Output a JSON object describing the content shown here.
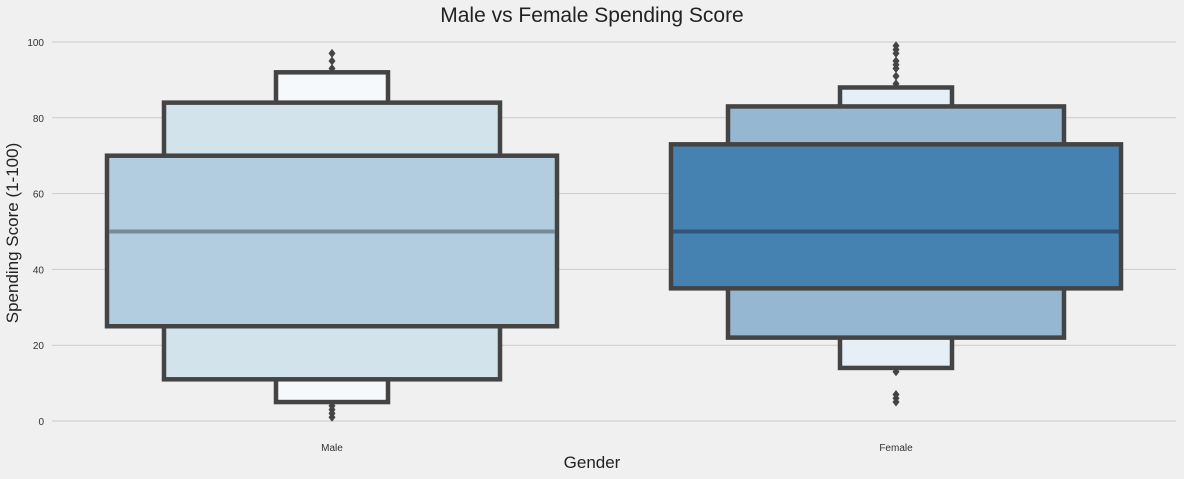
{
  "chart_data": {
    "type": "boxen",
    "title": "Male vs Female Spending Score",
    "xlabel": "Gender",
    "ylabel": "Spending Score (1-100)",
    "ylim": [
      0,
      100
    ],
    "yticks": [
      0,
      20,
      40,
      60,
      80,
      100
    ],
    "grid": true,
    "categories": [
      "Male",
      "Female"
    ],
    "series": [
      {
        "category": "Male",
        "median": 50,
        "boxes": [
          {
            "low": 25,
            "high": 70,
            "color": "#b3cde0"
          },
          {
            "low": 11,
            "high": 84,
            "color": "#d3e3ec"
          },
          {
            "low": 5,
            "high": 92,
            "color": "#f5f9fc"
          }
        ],
        "outliers": [
          1,
          2,
          3,
          4,
          93,
          95,
          97
        ],
        "median_color": "#768a97"
      },
      {
        "category": "Female",
        "median": 50,
        "boxes": [
          {
            "low": 35,
            "high": 73,
            "color": "#4682b1"
          },
          {
            "low": 22,
            "high": 83,
            "color": "#96b7d2"
          },
          {
            "low": 14,
            "high": 88,
            "color": "#e6eef6"
          }
        ],
        "outliers": [
          5,
          6,
          7,
          13,
          89,
          91,
          93,
          94,
          95,
          97,
          98,
          99
        ],
        "median_color": "#2f5678"
      }
    ]
  }
}
